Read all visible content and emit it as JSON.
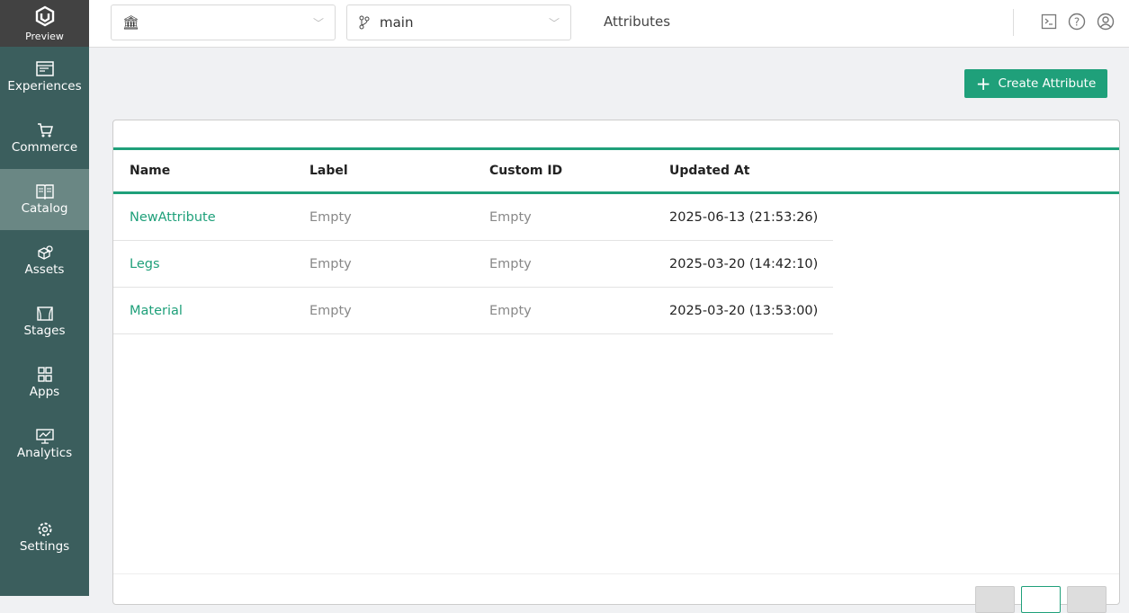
{
  "brand": {
    "label": "Preview"
  },
  "sidebar": {
    "items": [
      {
        "label": "Experiences",
        "icon": "browser-window-icon"
      },
      {
        "label": "Commerce",
        "icon": "cart-icon"
      },
      {
        "label": "Catalog",
        "icon": "book-icon",
        "active": true
      },
      {
        "label": "Assets",
        "icon": "cubes-icon"
      },
      {
        "label": "Stages",
        "icon": "stage-icon"
      },
      {
        "label": "Apps",
        "icon": "grid-icon"
      },
      {
        "label": "Analytics",
        "icon": "chart-icon"
      }
    ],
    "settings": "Settings"
  },
  "topbar": {
    "org_value": "",
    "branch_value": "main",
    "title": "Attributes"
  },
  "actions": {
    "create": "Create Attribute"
  },
  "table": {
    "headers": [
      "Name",
      "Label",
      "Custom ID",
      "Updated At"
    ],
    "rows": [
      [
        "NewAttribute",
        "Empty",
        "Empty",
        "2025-06-13 (21:53:26)"
      ],
      [
        "Legs",
        "Empty",
        "Empty",
        "2025-03-20 (14:42:10)"
      ],
      [
        "Material",
        "Empty",
        "Empty",
        "2025-03-20 (13:53:00)"
      ]
    ]
  },
  "colors": {
    "accent": "#1fa07a",
    "sidebar": "#3b5e5d",
    "active": "#6a8784"
  }
}
